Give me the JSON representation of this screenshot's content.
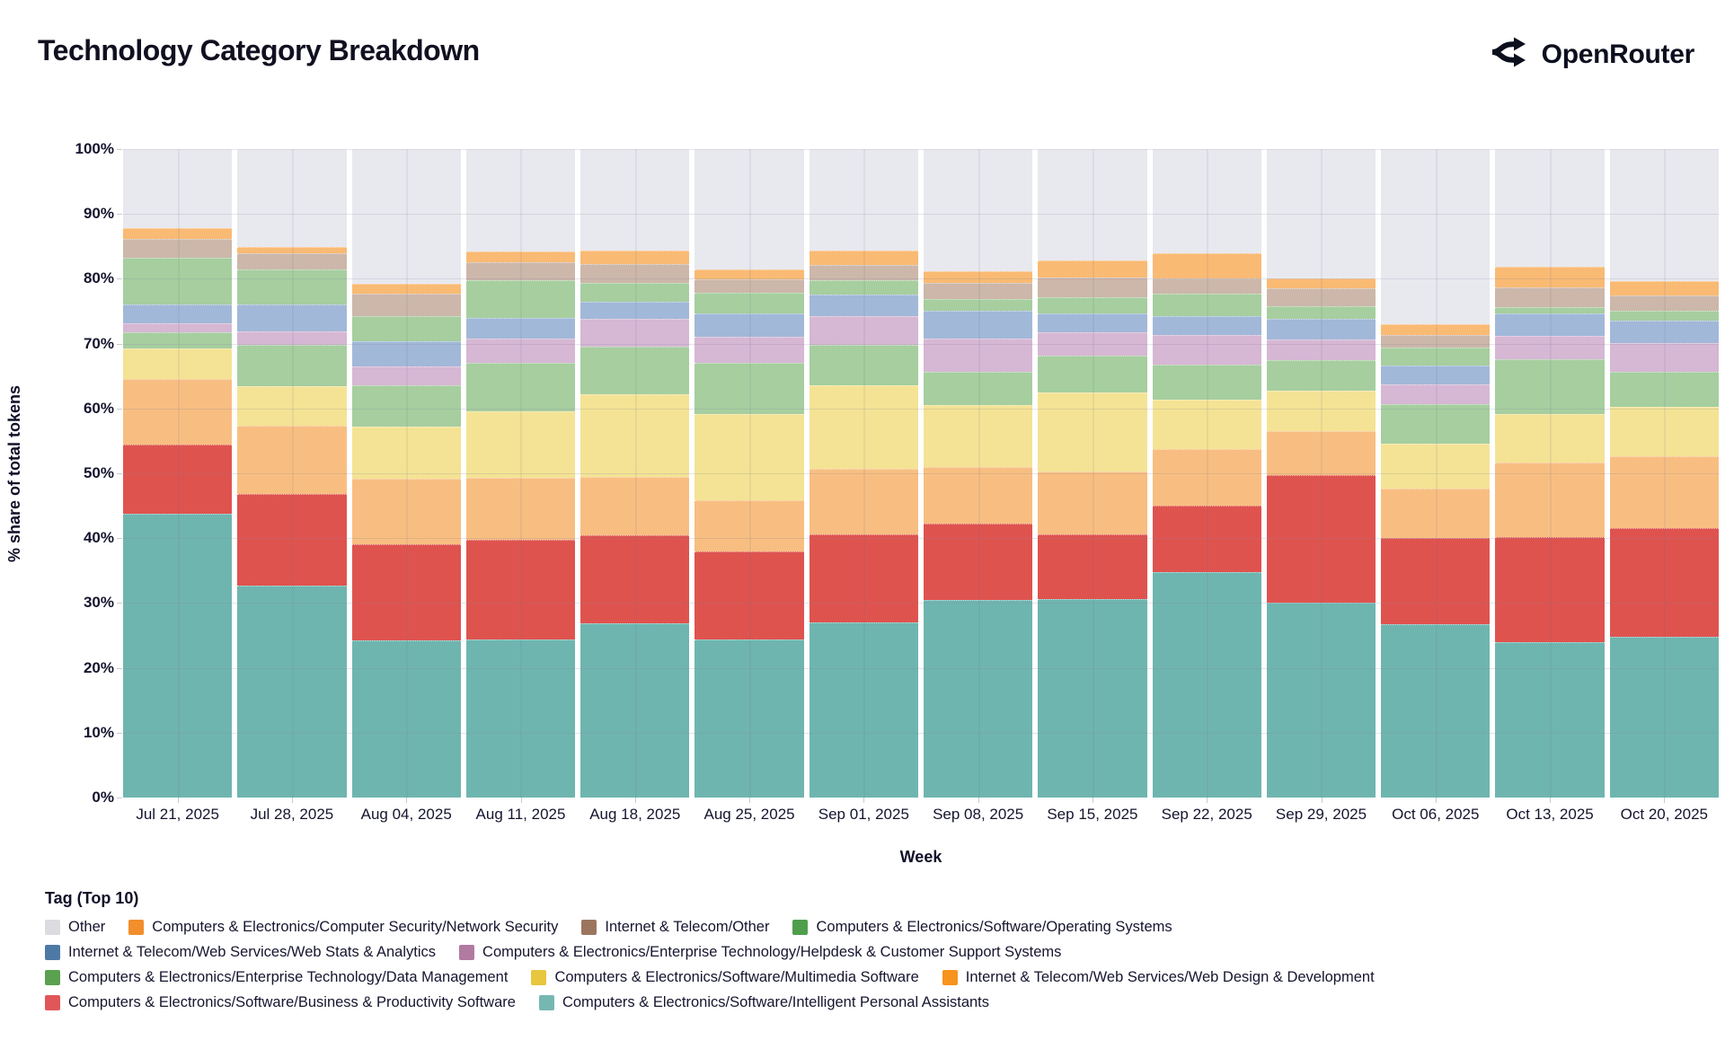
{
  "header": {
    "title": "Technology Category Breakdown",
    "brand": "OpenRouter"
  },
  "chart_data": {
    "type": "bar",
    "stacked": true,
    "percent": true,
    "xlabel": "Week",
    "ylabel": "% share of total tokens",
    "ylim": [
      0,
      100
    ],
    "ytick_labels": [
      "0%",
      "10%",
      "20%",
      "30%",
      "40%",
      "50%",
      "60%",
      "70%",
      "80%",
      "90%",
      "100%"
    ],
    "grid": true,
    "legend_position": "bottom",
    "categories": [
      "Jul 21, 2025",
      "Jul 28, 2025",
      "Aug 04, 2025",
      "Aug 11, 2025",
      "Aug 18, 2025",
      "Aug 25, 2025",
      "Sep 01, 2025",
      "Sep 08, 2025",
      "Sep 15, 2025",
      "Sep 22, 2025",
      "Sep 29, 2025",
      "Oct 06, 2025",
      "Oct 13, 2025",
      "Oct 20, 2025"
    ],
    "series": [
      {
        "name": "Computers & Electronics/Software/Intelligent Personal Assistants",
        "bar_color": "#6FB5AF",
        "legend_color": "#76B7B2",
        "pattern": "none",
        "values": [
          43.8,
          32.7,
          24.2,
          24.4,
          26.9,
          24.4,
          27.0,
          30.5,
          30.6,
          34.8,
          30.0,
          26.7,
          23.9,
          24.8
        ]
      },
      {
        "name": "Computers & Electronics/Software/Business & Productivity Software",
        "bar_color": "#DF534F",
        "legend_color": "#E15759",
        "pattern": "none",
        "values": [
          10.7,
          14.1,
          14.8,
          15.4,
          13.5,
          13.6,
          13.6,
          11.7,
          10.0,
          10.2,
          19.7,
          13.4,
          16.3,
          16.8
        ]
      },
      {
        "name": "Internet & Telecom/Web Services/Web Design & Development",
        "bar_color": "#F8BE81",
        "legend_color": "#F7941D",
        "pattern": "none",
        "values": [
          10.0,
          10.6,
          10.2,
          9.5,
          9.0,
          7.9,
          10.1,
          8.8,
          9.7,
          8.7,
          6.8,
          7.5,
          11.5,
          11.0
        ]
      },
      {
        "name": "Computers & Electronics/Software/Multimedia Software",
        "bar_color": "#F4E394",
        "legend_color": "#E8C63E",
        "pattern": "none",
        "values": [
          4.7,
          6.0,
          8.0,
          10.3,
          12.8,
          13.3,
          12.9,
          9.6,
          12.2,
          7.6,
          6.3,
          7.0,
          7.4,
          7.6
        ]
      },
      {
        "name": "Computers & Electronics/Enterprise Technology/Data Management",
        "bar_color": "#A6CE9F",
        "legend_color": "#59A14F",
        "pattern": "none",
        "values": [
          2.5,
          6.4,
          6.4,
          7.4,
          7.4,
          7.9,
          6.2,
          5.0,
          5.6,
          5.5,
          4.7,
          6.1,
          8.5,
          5.5
        ]
      },
      {
        "name": "Computers & Electronics/Enterprise Technology/Helpdesk & Customer Support Systems",
        "bar_color": "#D6B7D4",
        "legend_color": "#B07AA1",
        "pattern": "dots",
        "values": [
          1.5,
          2.1,
          2.9,
          3.8,
          4.2,
          3.9,
          4.4,
          5.2,
          3.6,
          4.5,
          3.1,
          3.0,
          3.6,
          4.4
        ]
      },
      {
        "name": "Internet & Telecom/Web Services/Web Stats & Analytics",
        "bar_color": "#A2B8D8",
        "legend_color": "#4E79A7",
        "pattern": "none",
        "values": [
          2.8,
          4.2,
          3.8,
          3.2,
          2.7,
          3.7,
          3.4,
          4.3,
          3.0,
          3.0,
          3.2,
          2.9,
          3.4,
          3.4
        ]
      },
      {
        "name": "Computers & Electronics/Software/Operating Systems",
        "bar_color": "#A6CE9F",
        "legend_color": "#4F9E4C",
        "pattern": "none",
        "values": [
          7.3,
          5.4,
          3.9,
          5.8,
          2.9,
          3.2,
          2.2,
          1.8,
          2.5,
          3.4,
          2.0,
          2.8,
          1.1,
          1.6
        ]
      },
      {
        "name": "Internet & Telecom/Other",
        "bar_color": "#CCB7AA",
        "legend_color": "#9C755F",
        "pattern": "legend-dots",
        "values": [
          2.9,
          2.4,
          3.5,
          2.7,
          2.9,
          2.0,
          2.4,
          2.5,
          3.0,
          2.4,
          2.7,
          1.9,
          3.0,
          2.4
        ]
      },
      {
        "name": "Computers & Electronics/Computer Security/Network Security",
        "bar_color": "#F9BA74",
        "legend_color": "#F28E2B",
        "pattern": "none",
        "values": [
          1.6,
          1.0,
          1.6,
          1.7,
          2.0,
          1.6,
          2.1,
          1.8,
          2.6,
          3.9,
          1.6,
          1.7,
          3.2,
          2.2
        ]
      },
      {
        "name": "Other",
        "bar_color": "#E8E9EF",
        "legend_color": "#DBDBE0",
        "pattern": "none",
        "values": [
          12.2,
          15.1,
          20.7,
          15.8,
          15.7,
          18.5,
          15.7,
          18.8,
          17.2,
          16.0,
          19.9,
          27.0,
          18.1,
          20.3
        ]
      }
    ]
  },
  "legend": {
    "title": "Tag (Top 10)",
    "rows": [
      [
        10,
        9,
        8,
        7
      ],
      [
        6,
        5
      ],
      [
        4,
        3,
        2
      ],
      [
        1,
        0
      ]
    ]
  }
}
